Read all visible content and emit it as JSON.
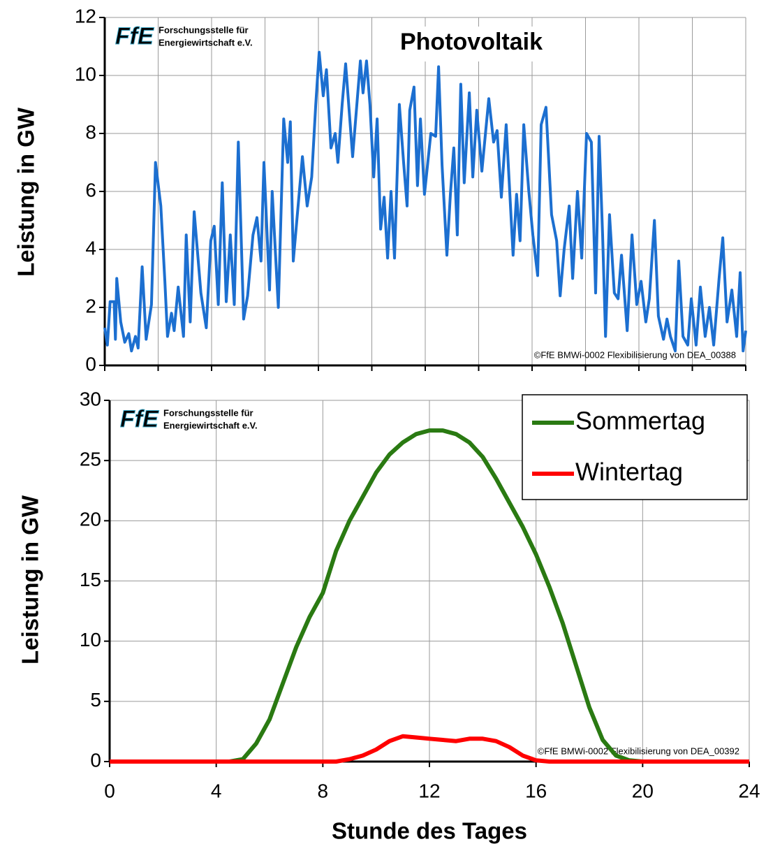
{
  "chart_data": [
    {
      "type": "line",
      "title": "Photovoltaik",
      "y_label": "Leistung in GW",
      "color": "#1c6fd0",
      "watermark": "©FfE BMWi-0002 Flexibilisierung von DEA_00388",
      "logo": {
        "mark": "FfE",
        "line1": "Forschungsstelle für",
        "line2": "Energiewirtschaft e.V."
      },
      "xlim": [
        0,
        24
      ],
      "xticks": [
        0,
        2,
        4,
        6,
        8,
        10,
        12,
        14,
        16,
        18,
        20,
        22,
        24
      ],
      "ylim": [
        0,
        12
      ],
      "yticks": [
        0,
        2,
        4,
        6,
        8,
        10,
        12
      ],
      "grid": true,
      "x": [
        0,
        0.1,
        0.2,
        0.35,
        0.4,
        0.45,
        0.6,
        0.75,
        0.9,
        1.0,
        1.15,
        1.25,
        1.4,
        1.55,
        1.75,
        1.9,
        2.1,
        2.25,
        2.35,
        2.5,
        2.6,
        2.75,
        2.95,
        3.05,
        3.2,
        3.35,
        3.6,
        3.8,
        3.97,
        4.1,
        4.25,
        4.4,
        4.55,
        4.7,
        4.85,
        5.0,
        5.2,
        5.35,
        5.55,
        5.7,
        5.85,
        5.96,
        6.17,
        6.27,
        6.5,
        6.7,
        6.85,
        6.95,
        7.06,
        7.4,
        7.58,
        7.75,
        7.9,
        8.03,
        8.18,
        8.3,
        8.47,
        8.63,
        8.73,
        8.89,
        9.02,
        9.15,
        9.28,
        9.57,
        9.67,
        9.8,
        9.93,
        10.07,
        10.2,
        10.33,
        10.46,
        10.59,
        10.72,
        10.85,
        11.03,
        11.19,
        11.32,
        11.42,
        11.58,
        11.71,
        11.82,
        11.97,
        12.21,
        12.39,
        12.5,
        12.63,
        12.81,
        12.94,
        13.07,
        13.2,
        13.33,
        13.46,
        13.65,
        13.78,
        13.93,
        14.12,
        14.38,
        14.56,
        14.69,
        14.85,
        15.03,
        15.29,
        15.42,
        15.55,
        15.69,
        15.87,
        16.03,
        16.21,
        16.34,
        16.52,
        16.73,
        16.92,
        17.05,
        17.2,
        17.39,
        17.52,
        17.7,
        17.86,
        18.04,
        18.22,
        18.38,
        18.51,
        18.64,
        18.75,
        18.9,
        19.08,
        19.22,
        19.35,
        19.56,
        19.74,
        19.92,
        20.08,
        20.26,
        20.39,
        20.58,
        20.73,
        20.92,
        21.05,
        21.18,
        21.36,
        21.49,
        21.65,
        21.83,
        21.96,
        22.14,
        22.3,
        22.48,
        22.64,
        22.8,
        23.0,
        23.14,
        23.3,
        23.48,
        23.66,
        23.79,
        23.9,
        24.0
      ],
      "values": [
        1.3,
        0.7,
        2.2,
        2.2,
        0.9,
        3.0,
        1.5,
        0.8,
        1.1,
        0.5,
        1.0,
        0.6,
        3.4,
        0.9,
        2.1,
        7.0,
        5.5,
        2.9,
        1.0,
        1.8,
        1.2,
        2.7,
        1.0,
        4.5,
        1.5,
        5.3,
        2.5,
        1.3,
        4.3,
        4.8,
        2.1,
        6.3,
        2.2,
        4.5,
        2.1,
        7.7,
        1.6,
        2.4,
        4.5,
        5.1,
        3.6,
        7.0,
        2.6,
        6.0,
        2.0,
        8.5,
        7.0,
        8.4,
        3.6,
        7.2,
        5.5,
        6.5,
        9.0,
        10.8,
        9.3,
        10.2,
        7.5,
        8.0,
        7.0,
        9.0,
        10.4,
        8.8,
        7.2,
        10.5,
        9.4,
        10.5,
        9.0,
        6.5,
        8.5,
        4.7,
        5.8,
        3.7,
        6.0,
        3.7,
        9.0,
        7.0,
        5.5,
        8.8,
        9.6,
        6.2,
        8.5,
        5.9,
        8.0,
        7.9,
        10.3,
        6.9,
        3.8,
        5.9,
        7.5,
        4.5,
        9.7,
        6.3,
        9.4,
        6.5,
        8.8,
        6.7,
        9.2,
        7.7,
        8.1,
        5.8,
        8.3,
        3.8,
        5.9,
        4.3,
        8.3,
        6.1,
        4.5,
        3.1,
        8.3,
        8.9,
        5.2,
        4.3,
        2.4,
        4.0,
        5.5,
        3.0,
        6.0,
        3.7,
        8.0,
        7.7,
        2.5,
        7.9,
        4.5,
        1.0,
        5.2,
        2.5,
        2.3,
        3.8,
        1.2,
        4.5,
        2.1,
        2.9,
        1.5,
        2.3,
        5.0,
        1.7,
        0.9,
        1.6,
        1.0,
        0.5,
        3.6,
        1.0,
        0.7,
        2.3,
        0.7,
        2.7,
        1.0,
        2.0,
        0.7,
        3.0,
        4.4,
        1.5,
        2.6,
        1.0,
        3.2,
        0.5,
        1.2
      ]
    },
    {
      "type": "line",
      "x_label": "Stunde des Tages",
      "y_label": "Leistung in GW",
      "watermark": "©FfE BMWi-0002 Flexibilisierung von DEA_00392",
      "logo": {
        "mark": "FfE",
        "line1": "Forschungsstelle für",
        "line2": "Energiewirtschaft e.V."
      },
      "xlim": [
        0,
        24
      ],
      "xticks": [
        0,
        4,
        8,
        12,
        16,
        20,
        24
      ],
      "ylim": [
        0,
        30
      ],
      "yticks": [
        0,
        5,
        10,
        15,
        20,
        25,
        30
      ],
      "grid": true,
      "legend": "top-right",
      "x": [
        0,
        0.5,
        1,
        1.5,
        2,
        2.5,
        3,
        3.5,
        4,
        4.5,
        5,
        5.5,
        6,
        6.5,
        7,
        7.5,
        8,
        8.5,
        9,
        9.5,
        10,
        10.5,
        11,
        11.5,
        12,
        12.5,
        13,
        13.5,
        14,
        14.5,
        15,
        15.5,
        16,
        16.5,
        17,
        17.5,
        18,
        18.5,
        19,
        19.5,
        20,
        20.5,
        21,
        21.5,
        22,
        22.5,
        23,
        23.5,
        24
      ],
      "series": [
        {
          "name": "Sommertag",
          "color": "#2a7a12",
          "values": [
            0,
            0,
            0,
            0,
            0,
            0,
            0,
            0,
            0,
            0,
            0.2,
            1.5,
            3.5,
            6.5,
            9.5,
            12,
            14,
            17.5,
            20,
            22,
            24,
            25.5,
            26.5,
            27.2,
            27.5,
            27.5,
            27.2,
            26.5,
            25.3,
            23.5,
            21.5,
            19.5,
            17.2,
            14.5,
            11.5,
            8,
            4.5,
            1.8,
            0.5,
            0.1,
            0,
            0,
            0,
            0,
            0,
            0,
            0,
            0,
            0
          ]
        },
        {
          "name": "Wintertag",
          "color": "#ff0000",
          "values": [
            0,
            0,
            0,
            0,
            0,
            0,
            0,
            0,
            0,
            0,
            0,
            0,
            0,
            0,
            0,
            0,
            0,
            0,
            0.2,
            0.5,
            1.0,
            1.7,
            2.1,
            2.0,
            1.9,
            1.8,
            1.7,
            1.9,
            1.9,
            1.7,
            1.2,
            0.5,
            0.1,
            0,
            0,
            0,
            0,
            0,
            0,
            0,
            0,
            0,
            0,
            0,
            0,
            0,
            0,
            0,
            0
          ]
        }
      ]
    }
  ]
}
